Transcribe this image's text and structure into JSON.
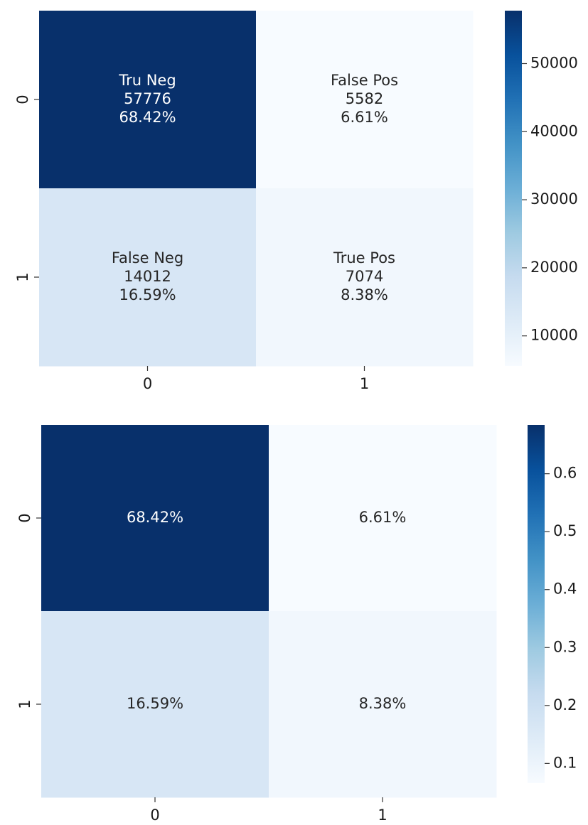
{
  "chart_data": [
    {
      "type": "heatmap",
      "rows": [
        "0",
        "1"
      ],
      "cols": [
        "0",
        "1"
      ],
      "values": [
        [
          57776,
          5582
        ],
        [
          14012,
          7074
        ]
      ],
      "annotations": [
        [
          [
            "Tru Neg",
            "57776",
            "68.42%"
          ],
          [
            "False Pos",
            "5582",
            "6.61%"
          ]
        ],
        [
          [
            "False Neg",
            "14012",
            "16.59%"
          ],
          [
            "True Pos",
            "7074",
            "8.38%"
          ]
        ]
      ],
      "colormap": "Blues",
      "vmin": 5582,
      "vmax": 57776,
      "colorbar_ticks": [
        10000,
        20000,
        30000,
        40000,
        50000
      ],
      "colorbar_tick_labels": [
        "10000",
        "20000",
        "30000",
        "40000",
        "50000"
      ]
    },
    {
      "type": "heatmap",
      "rows": [
        "0",
        "1"
      ],
      "cols": [
        "0",
        "1"
      ],
      "values": [
        [
          0.6842,
          0.0661
        ],
        [
          0.1659,
          0.0838
        ]
      ],
      "annotations": [
        [
          [
            "68.42%"
          ],
          [
            "6.61%"
          ]
        ],
        [
          [
            "16.59%"
          ],
          [
            "8.38%"
          ]
        ]
      ],
      "colormap": "Blues",
      "vmin": 0.0661,
      "vmax": 0.6842,
      "colorbar_ticks": [
        0.1,
        0.2,
        0.3,
        0.4,
        0.5,
        0.6
      ],
      "colorbar_tick_labels": [
        "0.1",
        "0.2",
        "0.3",
        "0.4",
        "0.5",
        "0.6"
      ]
    }
  ]
}
